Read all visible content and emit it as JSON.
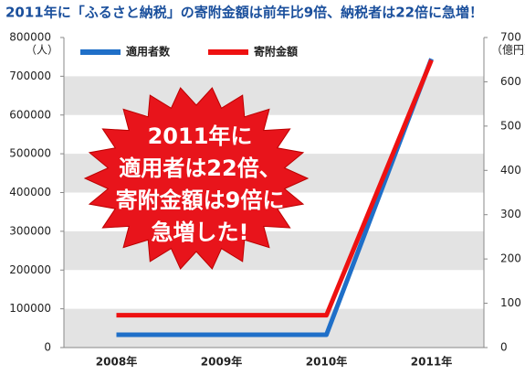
{
  "chart_data": {
    "type": "line",
    "title": "2011年に「ふるさと納税」の寄附金額は前年比9倍、納税者は22倍に急増！",
    "categories": [
      "2008年",
      "2009年",
      "2010年",
      "2011年"
    ],
    "series": [
      {
        "name": "適用者数",
        "color": "#1f6fc8",
        "values": [
          33000,
          33000,
          33000,
          745000
        ]
      },
      {
        "name": "寄附金額",
        "color": "#ee1111",
        "axis": "y2",
        "values": [
          73,
          73,
          73,
          649
        ]
      }
    ],
    "ylim": [
      0,
      800000
    ],
    "yticks": [
      0,
      100000,
      200000,
      300000,
      400000,
      500000,
      600000,
      700000,
      800000
    ],
    "y2lim": [
      0,
      700
    ],
    "y2ticks": [
      0,
      100,
      200,
      300,
      400,
      500,
      600,
      700
    ],
    "ylabel": "（人）",
    "y2label": "（億円）",
    "grid": true,
    "annotation": [
      "2011年に",
      "適用者は22倍、",
      "寄附金額は9倍に",
      "急増した!"
    ]
  }
}
